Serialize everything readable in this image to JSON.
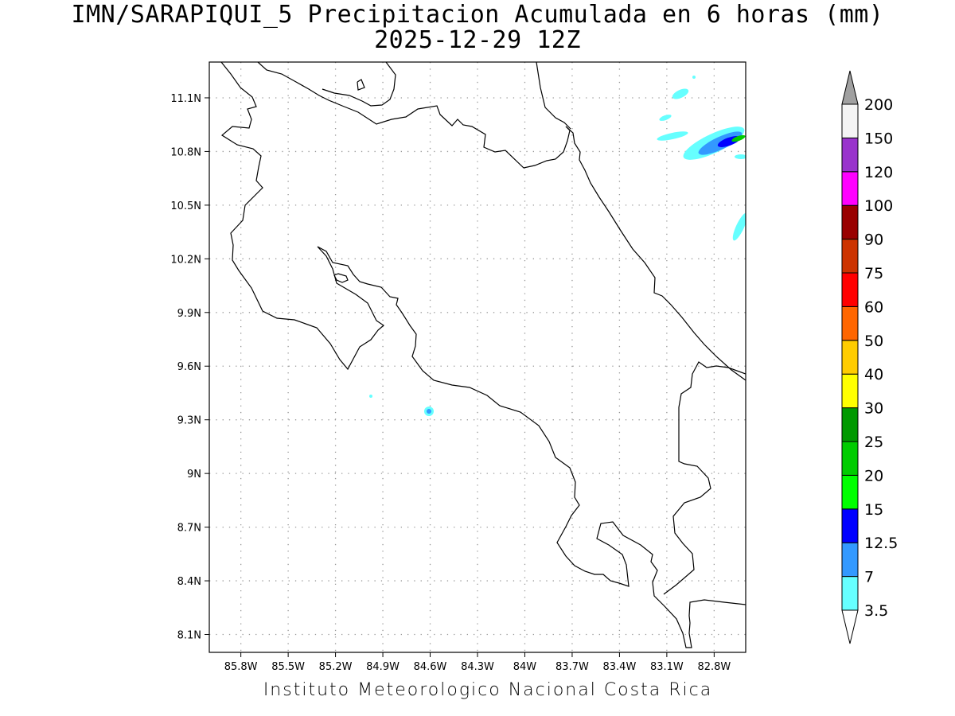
{
  "title": {
    "line1": "IMN/SARAPIQUI_5 Precipitacion Acumulada en 6 horas (mm)",
    "line2": "2025-12-29 12Z"
  },
  "footer": "Instituto Meteorologico Nacional Costa Rica",
  "map": {
    "region": "Costa Rica",
    "variable": "6-hour accumulated precipitation",
    "units": "mm",
    "lon_range": [
      -86.0,
      -82.6
    ],
    "lat_range": [
      8.0,
      11.3
    ],
    "grid": "dotted",
    "lat_ticks": [
      {
        "value": 11.1,
        "label": "11.1N"
      },
      {
        "value": 10.8,
        "label": "10.8N"
      },
      {
        "value": 10.5,
        "label": "10.5N"
      },
      {
        "value": 10.2,
        "label": "10.2N"
      },
      {
        "value": 9.9,
        "label": "9.9N"
      },
      {
        "value": 9.6,
        "label": "9.6N"
      },
      {
        "value": 9.3,
        "label": "9.3N"
      },
      {
        "value": 9.0,
        "label": "9N"
      },
      {
        "value": 8.7,
        "label": "8.7N"
      },
      {
        "value": 8.4,
        "label": "8.4N"
      },
      {
        "value": 8.1,
        "label": "8.1N"
      }
    ],
    "lon_ticks": [
      {
        "value": -85.8,
        "label": "85.8W"
      },
      {
        "value": -85.5,
        "label": "85.5W"
      },
      {
        "value": -85.2,
        "label": "85.2W"
      },
      {
        "value": -84.9,
        "label": "84.9W"
      },
      {
        "value": -84.6,
        "label": "84.6W"
      },
      {
        "value": -84.3,
        "label": "84.3W"
      },
      {
        "value": -84.0,
        "label": "84W"
      },
      {
        "value": -83.7,
        "label": "83.7W"
      },
      {
        "value": -83.4,
        "label": "83.4W"
      },
      {
        "value": -83.1,
        "label": "83.1W"
      },
      {
        "value": -82.8,
        "label": "82.8W"
      }
    ]
  },
  "colorbar": {
    "levels": [
      {
        "label": "3.5",
        "color": "#66ffff"
      },
      {
        "label": "7",
        "color": "#3399ff"
      },
      {
        "label": "12.5",
        "color": "#0000ff"
      },
      {
        "label": "15",
        "color": "#00ff00"
      },
      {
        "label": "20",
        "color": "#00cc00"
      },
      {
        "label": "25",
        "color": "#009900"
      },
      {
        "label": "30",
        "color": "#ffff00"
      },
      {
        "label": "40",
        "color": "#ffcc00"
      },
      {
        "label": "50",
        "color": "#ff6600"
      },
      {
        "label": "60",
        "color": "#ff0000"
      },
      {
        "label": "75",
        "color": "#cc3300"
      },
      {
        "label": "90",
        "color": "#990000"
      },
      {
        "label": "100",
        "color": "#ff00ff"
      },
      {
        "label": "120",
        "color": "#9933cc"
      },
      {
        "label": "150",
        "color": "#f4f4f4"
      },
      {
        "label": "200",
        "color": "#a0a0a0"
      }
    ]
  }
}
